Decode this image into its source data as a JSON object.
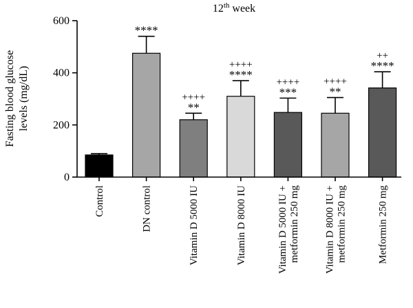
{
  "chart_data": {
    "type": "bar",
    "title": "12",
    "title_superscript": "th",
    "title_suffix": " week",
    "ylabel_line1": "Fasting blood glucose",
    "ylabel_line2": "levels (mg/dL)",
    "ylim": [
      0,
      600
    ],
    "yticks": [
      "0",
      "200",
      "400",
      "600"
    ],
    "ytick_values": [
      0,
      200,
      400,
      600
    ],
    "grid": false,
    "bars": [
      {
        "label_lines": [
          "Control"
        ],
        "value": 85,
        "error": 5,
        "fill": "#000000",
        "stars": "",
        "plus": ""
      },
      {
        "label_lines": [
          "DN control"
        ],
        "value": 475,
        "error": 65,
        "fill": "#a6a6a6",
        "stars": "****",
        "plus": ""
      },
      {
        "label_lines": [
          "Vitamin D 5000 IU"
        ],
        "value": 220,
        "error": 25,
        "fill": "#7f7f7f",
        "stars": "**",
        "plus": "++++"
      },
      {
        "label_lines": [
          "Vitamin D 8000 IU"
        ],
        "value": 310,
        "error": 60,
        "fill": "#d9d9d9",
        "stars": "****",
        "plus": "++++"
      },
      {
        "label_lines": [
          "Vitamin D 5000 IU +",
          "metformin 250 mg"
        ],
        "value": 248,
        "error": 55,
        "fill": "#595959",
        "stars": "***",
        "plus": "++++"
      },
      {
        "label_lines": [
          "Vitamin D 8000 IU +",
          "metformin 250 mg"
        ],
        "value": 245,
        "error": 60,
        "fill": "#a6a6a6",
        "stars": "**",
        "plus": "++++"
      },
      {
        "label_lines": [
          "Metformin 250 mg"
        ],
        "value": 342,
        "error": 62,
        "fill": "#595959",
        "stars": "****",
        "plus": "++"
      }
    ]
  }
}
